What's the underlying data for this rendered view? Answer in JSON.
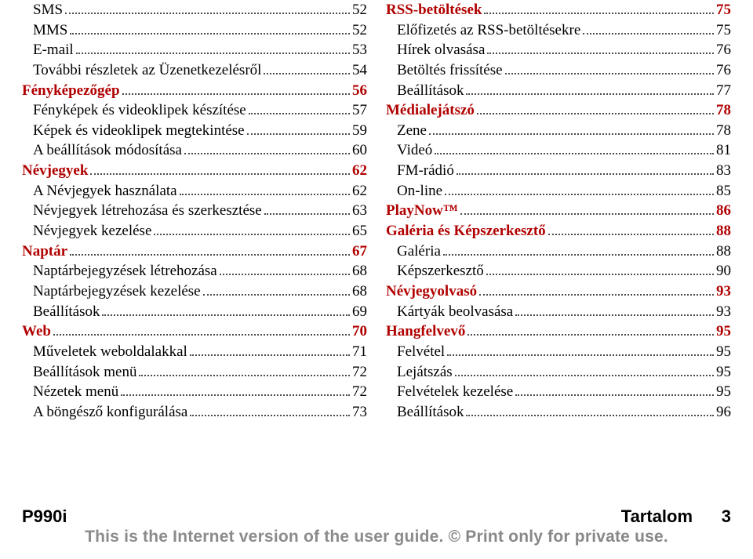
{
  "columns": {
    "left": [
      {
        "type": "sub",
        "label": "SMS",
        "page": "52"
      },
      {
        "type": "sub",
        "label": "MMS",
        "page": "52"
      },
      {
        "type": "sub",
        "label": "E-mail",
        "page": "53"
      },
      {
        "type": "sub",
        "label": "További részletek az Üzenetkezelésről",
        "page": "54"
      },
      {
        "type": "section",
        "label": "Fényképezőgép",
        "page": "56"
      },
      {
        "type": "sub",
        "label": "Fényképek és videoklipek készítése",
        "page": "57"
      },
      {
        "type": "sub",
        "label": "Képek és videoklipek megtekintése",
        "page": "59"
      },
      {
        "type": "sub",
        "label": "A beállítások módosítása",
        "page": "60"
      },
      {
        "type": "section",
        "label": "Névjegyek",
        "page": "62"
      },
      {
        "type": "sub",
        "label": "A Névjegyek használata",
        "page": "62"
      },
      {
        "type": "sub",
        "label": "Névjegyek létrehozása és szerkesztése",
        "page": "63"
      },
      {
        "type": "sub",
        "label": "Névjegyek kezelése",
        "page": "65"
      },
      {
        "type": "section",
        "label": "Naptár",
        "page": "67"
      },
      {
        "type": "sub",
        "label": "Naptárbejegyzések létrehozása",
        "page": "68"
      },
      {
        "type": "sub",
        "label": "Naptárbejegyzések kezelése",
        "page": "68"
      },
      {
        "type": "sub",
        "label": "Beállítások",
        "page": "69"
      },
      {
        "type": "section",
        "label": "Web",
        "page": "70"
      },
      {
        "type": "sub",
        "label": "Műveletek weboldalakkal",
        "page": "71"
      },
      {
        "type": "sub",
        "label": "Beállítások menü",
        "page": "72"
      },
      {
        "type": "sub",
        "label": "Nézetek menü",
        "page": "72"
      },
      {
        "type": "sub",
        "label": "A böngésző konfigurálása",
        "page": "73"
      }
    ],
    "right": [
      {
        "type": "section",
        "label": "RSS-betöltések",
        "page": "75"
      },
      {
        "type": "sub",
        "label": "Előfizetés az RSS-betöltésekre",
        "page": "75"
      },
      {
        "type": "sub",
        "label": "Hírek olvasása",
        "page": "76"
      },
      {
        "type": "sub",
        "label": "Betöltés frissítése",
        "page": "76"
      },
      {
        "type": "sub",
        "label": "Beállítások",
        "page": "77"
      },
      {
        "type": "section",
        "label": "Médialejátszó",
        "page": "78"
      },
      {
        "type": "sub",
        "label": "Zene",
        "page": "78"
      },
      {
        "type": "sub",
        "label": "Videó",
        "page": "81"
      },
      {
        "type": "sub",
        "label": "FM-rádió",
        "page": "83"
      },
      {
        "type": "sub",
        "label": "On-line",
        "page": "85"
      },
      {
        "type": "section",
        "label": "PlayNow™",
        "page": "86"
      },
      {
        "type": "section",
        "label": "Galéria és Képszerkesztő",
        "page": "88"
      },
      {
        "type": "sub",
        "label": "Galéria",
        "page": "88"
      },
      {
        "type": "sub",
        "label": "Képszerkesztő",
        "page": "90"
      },
      {
        "type": "section",
        "label": "Névjegyolvasó",
        "page": "93"
      },
      {
        "type": "sub",
        "label": "Kártyák beolvasása",
        "page": "93"
      },
      {
        "type": "section",
        "label": "Hangfelvevő",
        "page": "95"
      },
      {
        "type": "sub",
        "label": "Felvétel",
        "page": "95"
      },
      {
        "type": "sub",
        "label": "Lejátszás",
        "page": "95"
      },
      {
        "type": "sub",
        "label": "Felvételek kezelése",
        "page": "95"
      },
      {
        "type": "sub",
        "label": "Beállítások",
        "page": "96"
      }
    ]
  },
  "footer": {
    "model": "P990i",
    "section": "Tartalom",
    "page_number": "3",
    "note_a": "This is the Internet version of the user guide. ",
    "note_b": "© Print only for private use."
  },
  "colors": {
    "section": "#b10000",
    "text": "#000000",
    "footer_note": "#8b8b8b"
  }
}
